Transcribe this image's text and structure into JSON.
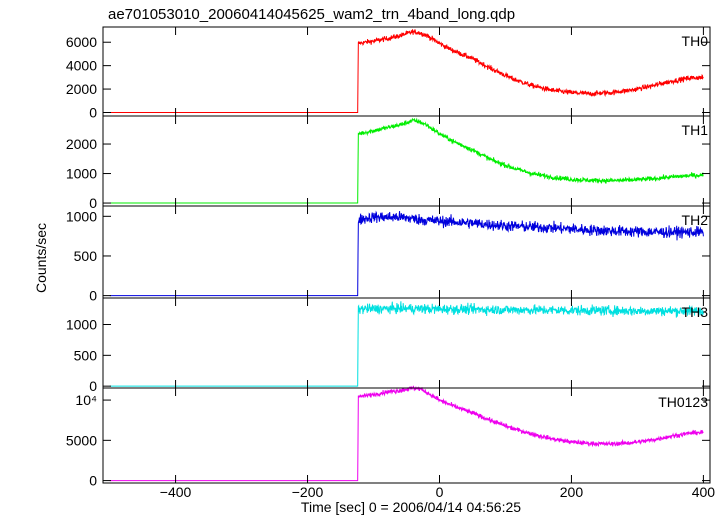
{
  "chart_data": {
    "type": "line",
    "title": "ae701053010_20060414045625_wam2_trn_4band_long.qdp",
    "xlabel": "Time [sec] 0 = 2006/04/14 04:56:25",
    "ylabel": "Counts/sec",
    "xlim": [
      -510,
      410
    ],
    "x_ticks": [
      -400,
      -200,
      0,
      200,
      400
    ],
    "x_tick_labels": [
      "−400",
      "−200",
      "0",
      "200",
      "400"
    ],
    "panels": [
      {
        "name": "TH0",
        "color": "#ff0000",
        "ylim": [
          -300,
          7300
        ],
        "y_ticks": [
          0,
          2000,
          4000,
          6000
        ],
        "y_tick_labels": [
          "0",
          "2000",
          "4000",
          "6000"
        ],
        "noise": 110,
        "points": [
          [
            -500,
            0
          ],
          [
            -124,
            0
          ],
          [
            -123,
            5900
          ],
          [
            -100,
            6100
          ],
          [
            -80,
            6300
          ],
          [
            -60,
            6550
          ],
          [
            -40,
            6900
          ],
          [
            -30,
            6800
          ],
          [
            -20,
            6600
          ],
          [
            0,
            5900
          ],
          [
            20,
            5300
          ],
          [
            50,
            4600
          ],
          [
            80,
            3700
          ],
          [
            110,
            2900
          ],
          [
            140,
            2300
          ],
          [
            170,
            1900
          ],
          [
            200,
            1700
          ],
          [
            230,
            1600
          ],
          [
            260,
            1700
          ],
          [
            290,
            1900
          ],
          [
            320,
            2250
          ],
          [
            350,
            2650
          ],
          [
            380,
            2950
          ],
          [
            400,
            3000
          ]
        ]
      },
      {
        "name": "TH1",
        "color": "#00ee00",
        "ylim": [
          -100,
          2950
        ],
        "y_ticks": [
          0,
          1000,
          2000
        ],
        "y_tick_labels": [
          "0",
          "1000",
          "2000"
        ],
        "noise": 40,
        "points": [
          [
            -500,
            0
          ],
          [
            -124,
            0
          ],
          [
            -123,
            2350
          ],
          [
            -100,
            2450
          ],
          [
            -80,
            2550
          ],
          [
            -60,
            2650
          ],
          [
            -40,
            2800
          ],
          [
            -30,
            2750
          ],
          [
            -20,
            2650
          ],
          [
            0,
            2350
          ],
          [
            20,
            2100
          ],
          [
            50,
            1800
          ],
          [
            80,
            1450
          ],
          [
            110,
            1200
          ],
          [
            140,
            1000
          ],
          [
            170,
            880
          ],
          [
            200,
            800
          ],
          [
            230,
            770
          ],
          [
            260,
            760
          ],
          [
            290,
            780
          ],
          [
            320,
            820
          ],
          [
            350,
            880
          ],
          [
            380,
            930
          ],
          [
            400,
            950
          ]
        ]
      },
      {
        "name": "TH2",
        "color": "#0000dd",
        "ylim": [
          -30,
          1130
        ],
        "y_ticks": [
          0,
          500,
          1000
        ],
        "y_tick_labels": [
          "0",
          "500",
          "1000"
        ],
        "noise": 35,
        "points": [
          [
            -500,
            0
          ],
          [
            -124,
            0
          ],
          [
            -123,
            960
          ],
          [
            -100,
            990
          ],
          [
            -60,
            990
          ],
          [
            -20,
            950
          ],
          [
            40,
            920
          ],
          [
            100,
            880
          ],
          [
            160,
            860
          ],
          [
            220,
            830
          ],
          [
            280,
            810
          ],
          [
            340,
            800
          ],
          [
            400,
            800
          ]
        ]
      },
      {
        "name": "TH3",
        "color": "#00e0e0",
        "ylim": [
          -30,
          1430
        ],
        "y_ticks": [
          0,
          500,
          1000
        ],
        "y_tick_labels": [
          "0",
          "500",
          "1000"
        ],
        "noise": 40,
        "points": [
          [
            -500,
            0
          ],
          [
            -124,
            0
          ],
          [
            -123,
            1250
          ],
          [
            -60,
            1260
          ],
          [
            0,
            1250
          ],
          [
            100,
            1240
          ],
          [
            200,
            1230
          ],
          [
            300,
            1220
          ],
          [
            400,
            1220
          ]
        ]
      },
      {
        "name": "TH0123",
        "color": "#ee00ee",
        "ylim": [
          -300,
          11500
        ],
        "y_ticks": [
          0,
          5000,
          10000
        ],
        "y_tick_labels": [
          "0",
          "5000",
          "10⁴"
        ],
        "noise": 140,
        "points": [
          [
            -500,
            0
          ],
          [
            -124,
            0
          ],
          [
            -123,
            10400
          ],
          [
            -100,
            10700
          ],
          [
            -80,
            11000
          ],
          [
            -60,
            11200
          ],
          [
            -40,
            11500
          ],
          [
            -30,
            11400
          ],
          [
            -20,
            11000
          ],
          [
            0,
            10000
          ],
          [
            20,
            9300
          ],
          [
            50,
            8400
          ],
          [
            80,
            7400
          ],
          [
            110,
            6500
          ],
          [
            140,
            5800
          ],
          [
            170,
            5200
          ],
          [
            200,
            4800
          ],
          [
            230,
            4600
          ],
          [
            260,
            4550
          ],
          [
            290,
            4700
          ],
          [
            320,
            5000
          ],
          [
            350,
            5500
          ],
          [
            380,
            5900
          ],
          [
            400,
            6000
          ]
        ]
      }
    ],
    "grid": false,
    "legend": "none"
  }
}
